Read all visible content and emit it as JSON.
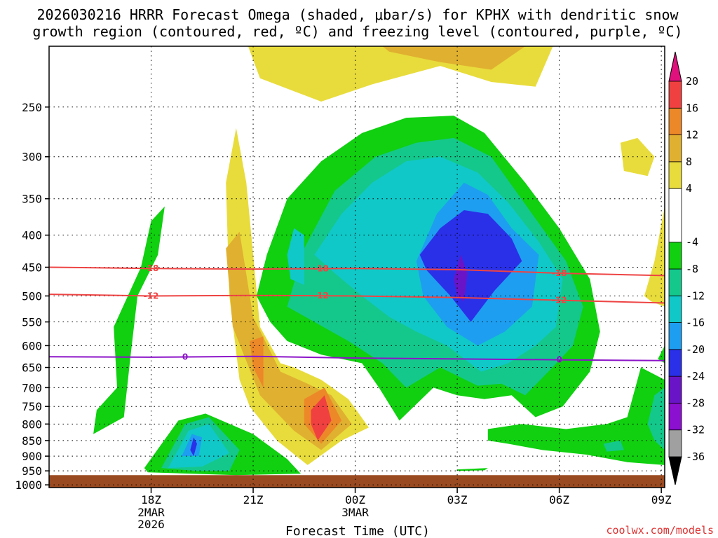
{
  "chart_data": {
    "type": "heatmap",
    "title_lines": [
      "2026030216 HRRR Forecast Omega (shaded, μbar/s) for KPHX with dendritic snow",
      "growth region (contoured, red, ºC) and freezing level (contoured, purple, ºC)"
    ],
    "xlabel": "Forecast Time (UTC)",
    "ylabel": "",
    "credit": "coolwx.com/models",
    "x_ticks": [
      {
        "label": "18Z",
        "sub": [
          "2MAR",
          "2026"
        ],
        "t": 3
      },
      {
        "label": "21Z",
        "sub": [],
        "t": 6
      },
      {
        "label": "00Z",
        "sub": [
          "3MAR"
        ],
        "t": 9
      },
      {
        "label": "03Z",
        "sub": [],
        "t": 12
      },
      {
        "label": "06Z",
        "sub": [],
        "t": 15
      },
      {
        "label": "09Z",
        "sub": [],
        "t": 18
      }
    ],
    "xlim": [
      0,
      18.1
    ],
    "y_levels": [
      250,
      300,
      350,
      400,
      450,
      500,
      550,
      600,
      650,
      700,
      750,
      800,
      850,
      900,
      950,
      1000
    ],
    "ylim_hpa": [
      200,
      1010
    ],
    "y_scale": "log-pressure",
    "grid": true,
    "colorbar": {
      "levels": [
        -36,
        -32,
        -28,
        -24,
        -20,
        -16,
        -12,
        -8,
        -4,
        4,
        8,
        12,
        16,
        20
      ],
      "colors": [
        "#000000",
        "#a0a0a0",
        "#8c10d0",
        "#6a14c8",
        "#2a30e8",
        "#1e9ef0",
        "#10c8c8",
        "#14c88c",
        "#10d010",
        "#ffffff",
        "#e8dc3c",
        "#e0b030",
        "#ec8828",
        "#f04040",
        "#e0107c"
      ]
    },
    "contours": [
      {
        "name": "-18",
        "color": "#ee4444",
        "points": [
          [
            0,
            450
          ],
          [
            3,
            452
          ],
          [
            6,
            453
          ],
          [
            9,
            452
          ],
          [
            12,
            454
          ],
          [
            15,
            460
          ],
          [
            18.1,
            464
          ]
        ],
        "label_t": [
          3,
          8,
          15
        ]
      },
      {
        "name": "-12",
        "color": "#ee4444",
        "points": [
          [
            0,
            497
          ],
          [
            3,
            500
          ],
          [
            6,
            499
          ],
          [
            9,
            500
          ],
          [
            12,
            503
          ],
          [
            15,
            508
          ],
          [
            18.1,
            513
          ]
        ],
        "label_t": [
          3,
          8,
          15
        ]
      },
      {
        "name": "0",
        "color": "#8c14c8",
        "points": [
          [
            0,
            625
          ],
          [
            3,
            626
          ],
          [
            6,
            624
          ],
          [
            9,
            628
          ],
          [
            12,
            630
          ],
          [
            15,
            632
          ],
          [
            18.1,
            634
          ]
        ],
        "label_t": [
          4,
          15
        ]
      }
    ],
    "omega_blobs": [
      {
        "value": 6,
        "points": [
          [
            5.6,
            680
          ],
          [
            5.3,
            500
          ],
          [
            5.2,
            330
          ],
          [
            5.5,
            270
          ],
          [
            5.8,
            330
          ],
          [
            6.2,
            560
          ],
          [
            6.8,
            640
          ],
          [
            7.2,
            650
          ],
          [
            8.0,
            680
          ],
          [
            8.8,
            730
          ],
          [
            9.4,
            810
          ],
          [
            8.6,
            850
          ],
          [
            7.6,
            930
          ],
          [
            6.7,
            850
          ],
          [
            5.9,
            750
          ]
        ]
      },
      {
        "value": 10,
        "points": [
          [
            5.4,
            560
          ],
          [
            5.2,
            420
          ],
          [
            5.6,
            395
          ],
          [
            6.0,
            540
          ],
          [
            6.8,
            660
          ],
          [
            7.6,
            690
          ],
          [
            8.3,
            720
          ],
          [
            8.9,
            800
          ],
          [
            8.0,
            880
          ],
          [
            7.2,
            820
          ],
          [
            6.2,
            720
          ]
        ]
      },
      {
        "value": 14,
        "points": [
          [
            6.0,
            650
          ],
          [
            5.9,
            590
          ],
          [
            6.3,
            580
          ],
          [
            6.3,
            700
          ]
        ]
      },
      {
        "value": 14,
        "points": [
          [
            7.5,
            730
          ],
          [
            8.1,
            700
          ],
          [
            8.6,
            790
          ],
          [
            8.0,
            860
          ],
          [
            7.5,
            800
          ]
        ]
      },
      {
        "value": 18,
        "points": [
          [
            7.7,
            760
          ],
          [
            8.1,
            720
          ],
          [
            8.3,
            790
          ],
          [
            7.9,
            850
          ],
          [
            7.7,
            800
          ]
        ]
      },
      {
        "value": 6,
        "points": [
          [
            5.7,
            190
          ],
          [
            6.2,
            225
          ],
          [
            8.0,
            245
          ],
          [
            9.5,
            230
          ],
          [
            11.5,
            215
          ],
          [
            13.0,
            228
          ],
          [
            14.3,
            232
          ],
          [
            14.9,
            195
          ]
        ]
      },
      {
        "value": 10,
        "points": [
          [
            9.8,
            200
          ],
          [
            14.0,
            200
          ],
          [
            13.0,
            218
          ],
          [
            11.5,
            212
          ],
          [
            10.0,
            204
          ]
        ]
      },
      {
        "value": 6,
        "points": [
          [
            16.8,
            285
          ],
          [
            17.3,
            280
          ],
          [
            17.8,
            300
          ],
          [
            17.6,
            322
          ],
          [
            16.9,
            316
          ]
        ]
      },
      {
        "value": 6,
        "points": [
          [
            17.5,
            500
          ],
          [
            17.8,
            440
          ],
          [
            18.1,
            360
          ],
          [
            18.1,
            520
          ],
          [
            17.7,
            510
          ]
        ]
      },
      {
        "value": -6,
        "points": [
          [
            1.3,
            830
          ],
          [
            1.4,
            760
          ],
          [
            2.0,
            700
          ],
          [
            1.9,
            560
          ],
          [
            2.7,
            450
          ],
          [
            3.0,
            380
          ],
          [
            3.4,
            360
          ],
          [
            3.2,
            430
          ],
          [
            2.6,
            500
          ],
          [
            2.4,
            620
          ],
          [
            2.2,
            780
          ]
        ]
      },
      {
        "value": -6,
        "points": [
          [
            2.8,
            940
          ],
          [
            3.8,
            790
          ],
          [
            4.6,
            770
          ],
          [
            6.0,
            830
          ],
          [
            7.0,
            910
          ],
          [
            7.4,
            960
          ],
          [
            5.5,
            965
          ],
          [
            4.2,
            960
          ],
          [
            2.9,
            955
          ]
        ]
      },
      {
        "value": -10,
        "points": [
          [
            3.3,
            940
          ],
          [
            4.0,
            800
          ],
          [
            4.7,
            780
          ],
          [
            5.6,
            880
          ],
          [
            5.3,
            950
          ],
          [
            4.3,
            950
          ]
        ]
      },
      {
        "value": -14,
        "points": [
          [
            3.5,
            940
          ],
          [
            4.1,
            820
          ],
          [
            4.7,
            800
          ],
          [
            5.3,
            890
          ],
          [
            4.5,
            935
          ]
        ]
      },
      {
        "value": -18,
        "points": [
          [
            3.9,
            900
          ],
          [
            4.2,
            830
          ],
          [
            4.5,
            840
          ],
          [
            4.4,
            900
          ]
        ]
      },
      {
        "value": -22,
        "points": [
          [
            4.15,
            880
          ],
          [
            4.25,
            840
          ],
          [
            4.35,
            860
          ],
          [
            4.25,
            900
          ]
        ]
      },
      {
        "value": -6,
        "points": [
          [
            6.1,
            500
          ],
          [
            6.4,
            430
          ],
          [
            7.0,
            350
          ],
          [
            8.0,
            305
          ],
          [
            9.2,
            275
          ],
          [
            10.5,
            260
          ],
          [
            11.9,
            258
          ],
          [
            12.8,
            275
          ],
          [
            14.0,
            330
          ],
          [
            15.0,
            390
          ],
          [
            15.9,
            470
          ],
          [
            16.2,
            570
          ],
          [
            15.9,
            660
          ],
          [
            15.1,
            750
          ],
          [
            14.3,
            780
          ],
          [
            13.6,
            720
          ],
          [
            12.8,
            730
          ],
          [
            12.0,
            720
          ],
          [
            11.3,
            700
          ],
          [
            10.3,
            790
          ],
          [
            9.7,
            700
          ],
          [
            9.2,
            640
          ],
          [
            8.0,
            620
          ],
          [
            7.0,
            590
          ],
          [
            6.5,
            550
          ]
        ]
      },
      {
        "value": -10,
        "points": [
          [
            7.0,
            520
          ],
          [
            7.5,
            420
          ],
          [
            8.4,
            340
          ],
          [
            9.6,
            300
          ],
          [
            10.8,
            285
          ],
          [
            11.9,
            280
          ],
          [
            13.0,
            300
          ],
          [
            14.2,
            370
          ],
          [
            15.2,
            440
          ],
          [
            15.7,
            520
          ],
          [
            15.4,
            600
          ],
          [
            14.8,
            650
          ],
          [
            14.0,
            720
          ],
          [
            13.3,
            690
          ],
          [
            12.6,
            695
          ],
          [
            11.5,
            650
          ],
          [
            10.5,
            700
          ],
          [
            9.8,
            640
          ],
          [
            8.8,
            590
          ]
        ]
      },
      {
        "value": -14,
        "points": [
          [
            7.8,
            430
          ],
          [
            8.6,
            370
          ],
          [
            9.5,
            330
          ],
          [
            10.5,
            305
          ],
          [
            11.5,
            300
          ],
          [
            12.6,
            318
          ],
          [
            13.5,
            355
          ],
          [
            14.4,
            410
          ],
          [
            15.1,
            470
          ],
          [
            14.9,
            560
          ],
          [
            14.3,
            600
          ],
          [
            13.5,
            640
          ],
          [
            12.7,
            660
          ],
          [
            11.7,
            600
          ],
          [
            10.8,
            570
          ],
          [
            10.0,
            540
          ],
          [
            9.2,
            500
          ],
          [
            8.4,
            460
          ]
        ]
      },
      {
        "value": -18,
        "points": [
          [
            10.8,
            440
          ],
          [
            11.4,
            370
          ],
          [
            12.2,
            330
          ],
          [
            12.9,
            345
          ],
          [
            13.6,
            390
          ],
          [
            14.4,
            430
          ],
          [
            14.2,
            520
          ],
          [
            13.4,
            570
          ],
          [
            12.6,
            600
          ],
          [
            11.7,
            560
          ],
          [
            11.0,
            500
          ]
        ]
      },
      {
        "value": -22,
        "points": [
          [
            10.9,
            430
          ],
          [
            11.5,
            390
          ],
          [
            12.2,
            365
          ],
          [
            12.9,
            370
          ],
          [
            13.6,
            405
          ],
          [
            13.9,
            440
          ],
          [
            13.1,
            490
          ],
          [
            12.4,
            550
          ],
          [
            11.8,
            500
          ],
          [
            11.1,
            455
          ]
        ]
      },
      {
        "value": -26,
        "points": [
          [
            11.9,
            470
          ],
          [
            12.1,
            430
          ],
          [
            12.3,
            460
          ],
          [
            12.2,
            510
          ],
          [
            12.0,
            500
          ]
        ]
      },
      {
        "value": -14,
        "points": [
          [
            7.0,
            430
          ],
          [
            7.2,
            390
          ],
          [
            7.5,
            400
          ],
          [
            7.5,
            480
          ],
          [
            7.1,
            470
          ]
        ]
      },
      {
        "value": -6,
        "points": [
          [
            12.9,
            815
          ],
          [
            13.9,
            800
          ],
          [
            15.2,
            815
          ],
          [
            16.4,
            800
          ],
          [
            17.0,
            780
          ],
          [
            17.4,
            650
          ],
          [
            18.1,
            680
          ],
          [
            18.1,
            930
          ],
          [
            17.0,
            920
          ],
          [
            15.8,
            895
          ],
          [
            14.5,
            880
          ],
          [
            13.5,
            860
          ],
          [
            12.9,
            850
          ]
        ]
      },
      {
        "value": -6,
        "points": [
          [
            17.9,
            630
          ],
          [
            18.1,
            600
          ],
          [
            18.1,
            640
          ]
        ]
      },
      {
        "value": -10,
        "points": [
          [
            17.8,
            720
          ],
          [
            18.1,
            700
          ],
          [
            18.1,
            880
          ],
          [
            17.8,
            850
          ],
          [
            17.6,
            800
          ]
        ]
      },
      {
        "value": -10,
        "points": [
          [
            16.3,
            860
          ],
          [
            16.8,
            850
          ],
          [
            16.9,
            880
          ],
          [
            16.4,
            885
          ]
        ]
      },
      {
        "value": -6,
        "points": [
          [
            12.0,
            945
          ],
          [
            12.9,
            940
          ],
          [
            12.8,
            948
          ],
          [
            12.0,
            950
          ]
        ]
      }
    ]
  }
}
